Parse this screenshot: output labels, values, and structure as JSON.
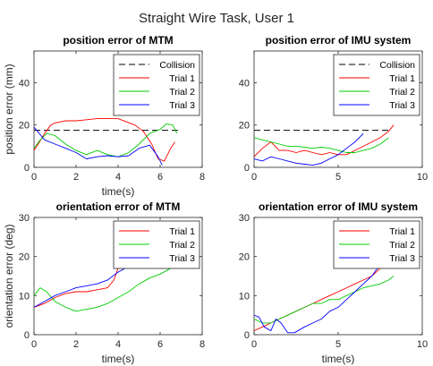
{
  "figure_title": "Straight Wire Task, User 1",
  "colors": {
    "trial1": "#ff0000",
    "trial2": "#00cc00",
    "trial3": "#0000ff",
    "collision": "#000000"
  },
  "chart_data": [
    {
      "type": "line",
      "title": "position error of MTM",
      "xlabel": "time(s)",
      "ylabel": "position error (mm)",
      "xlim": [
        0,
        8
      ],
      "ylim": [
        0,
        55
      ],
      "xticks": [
        0,
        2,
        4,
        6,
        8
      ],
      "yticks": [
        0,
        20,
        40
      ],
      "grid": false,
      "legend_position": "top-right",
      "series": [
        {
          "name": "Collision",
          "style": "dashed",
          "color": "#000000",
          "x": [
            0,
            6.9
          ],
          "y": [
            17.5,
            17.5
          ]
        },
        {
          "name": "Trial 1",
          "color": "#ff0000",
          "x": [
            0,
            0.2,
            0.5,
            0.8,
            1.0,
            1.5,
            2.0,
            2.5,
            3.0,
            3.5,
            4.0,
            4.4,
            4.8,
            5.2,
            5.6,
            5.9,
            6.2,
            6.5,
            6.7
          ],
          "y": [
            8,
            11,
            16,
            20,
            21,
            22,
            22,
            22.5,
            23,
            23,
            23,
            21.5,
            20,
            17,
            11,
            4,
            3,
            9,
            12
          ]
        },
        {
          "name": "Trial 2",
          "color": "#00cc00",
          "x": [
            0,
            0.3,
            0.6,
            1.0,
            1.5,
            2.0,
            2.5,
            3.0,
            3.5,
            4.0,
            4.5,
            5.0,
            5.5,
            6.0,
            6.3,
            6.6,
            6.8
          ],
          "y": [
            9,
            13,
            16,
            15,
            11,
            8,
            6,
            8,
            6,
            5,
            7,
            11,
            16,
            18,
            20.5,
            20,
            16
          ]
        },
        {
          "name": "Trial 3",
          "color": "#0000ff",
          "x": [
            0,
            0.5,
            1.0,
            1.5,
            2.0,
            2.5,
            3.0,
            3.5,
            4.0,
            4.5,
            5.0,
            5.5,
            5.9,
            6.1
          ],
          "y": [
            19,
            13,
            11,
            9,
            7,
            4,
            5,
            5.5,
            5,
            5.5,
            9,
            10.5,
            5,
            1
          ]
        }
      ]
    },
    {
      "type": "line",
      "title": "position error of IMU system",
      "xlabel": "",
      "ylabel": "",
      "xlim": [
        0,
        10
      ],
      "ylim": [
        0,
        55
      ],
      "xticks": [
        0,
        5,
        10
      ],
      "yticks": [
        0,
        20,
        40
      ],
      "grid": false,
      "legend_position": "top-right",
      "series": [
        {
          "name": "Collision",
          "style": "dashed",
          "color": "#000000",
          "x": [
            0,
            8.0
          ],
          "y": [
            17.5,
            17.5
          ]
        },
        {
          "name": "Trial 1",
          "color": "#ff0000",
          "x": [
            0,
            0.5,
            1.0,
            1.5,
            2.0,
            2.5,
            3.0,
            3.5,
            4.0,
            4.5,
            5.0,
            5.5,
            6.0,
            6.5,
            7.0,
            7.5,
            8.0,
            8.3
          ],
          "y": [
            5,
            9,
            12,
            8,
            8,
            7,
            8,
            7,
            6,
            7,
            6,
            6,
            8,
            10,
            12,
            14,
            17,
            20
          ]
        },
        {
          "name": "Trial 2",
          "color": "#00cc00",
          "x": [
            0,
            0.5,
            1.0,
            1.5,
            2.0,
            2.5,
            3.0,
            3.5,
            4.0,
            4.5,
            5.0,
            5.5,
            6.0,
            6.5,
            7.0,
            7.5,
            8.0
          ],
          "y": [
            14,
            13,
            12,
            11,
            10,
            10,
            9.5,
            9,
            9.5,
            9,
            8,
            7,
            7,
            8,
            9,
            11,
            14
          ]
        },
        {
          "name": "Trial 3",
          "color": "#0000ff",
          "x": [
            0,
            0.5,
            1.0,
            1.5,
            2.0,
            2.5,
            3.0,
            3.5,
            4.0,
            4.5,
            5.0,
            5.5,
            6.0,
            6.5
          ],
          "y": [
            4,
            3,
            5,
            4,
            3,
            2,
            1.5,
            1,
            2,
            4,
            6,
            9,
            12,
            16
          ]
        }
      ]
    },
    {
      "type": "line",
      "title": "orientation error of MTM",
      "xlabel": "time(s)",
      "ylabel": "orientation error (deg)",
      "xlim": [
        0,
        8
      ],
      "ylim": [
        0,
        30
      ],
      "xticks": [
        0,
        2,
        4,
        6,
        8
      ],
      "yticks": [
        0,
        10,
        20,
        30
      ],
      "grid": false,
      "legend_position": "top-right",
      "series": [
        {
          "name": "Trial 1",
          "color": "#ff0000",
          "x": [
            0,
            0.5,
            1.0,
            1.5,
            2.0,
            2.5,
            3.0,
            3.5,
            3.8,
            4.0,
            4.2,
            4.5,
            5.0,
            5.5,
            6.0,
            6.3,
            6.6
          ],
          "y": [
            7,
            8,
            9.5,
            10.5,
            11,
            11,
            11.5,
            12,
            14,
            17,
            17,
            18,
            19,
            20,
            18,
            17,
            18.5
          ]
        },
        {
          "name": "Trial 2",
          "color": "#00cc00",
          "x": [
            0,
            0.3,
            0.6,
            1.0,
            1.5,
            2.0,
            2.5,
            3.0,
            3.5,
            4.0,
            4.5,
            5.0,
            5.5,
            6.0,
            6.5,
            6.8
          ],
          "y": [
            10,
            12,
            11,
            8.5,
            7,
            6,
            6.5,
            7,
            8,
            9.5,
            11,
            13,
            14.5,
            15.5,
            17,
            19
          ]
        },
        {
          "name": "Trial 3",
          "color": "#0000ff",
          "x": [
            0,
            0.5,
            1.0,
            1.5,
            2.0,
            2.5,
            3.0,
            3.5,
            4.0,
            4.5,
            5.0,
            5.5
          ],
          "y": [
            7,
            8.5,
            10,
            11,
            12,
            12.5,
            13,
            14,
            16,
            17.5,
            19,
            20
          ]
        }
      ]
    },
    {
      "type": "line",
      "title": "orientation error of IMU system",
      "xlabel": "time(s)",
      "ylabel": "",
      "xlim": [
        0,
        10
      ],
      "ylim": [
        0,
        30
      ],
      "xticks": [
        0,
        5,
        10
      ],
      "yticks": [
        0,
        10,
        20,
        30
      ],
      "grid": false,
      "legend_position": "top-right",
      "series": [
        {
          "name": "Trial 1",
          "color": "#ff0000",
          "x": [
            0,
            0.5,
            1.0,
            1.5,
            2.0,
            2.5,
            3.0,
            3.5,
            4.0,
            4.5,
            5.0,
            5.5,
            6.0,
            6.5,
            7.0,
            7.5,
            8.0
          ],
          "y": [
            1,
            2,
            3,
            4,
            5,
            6,
            7,
            8,
            9,
            10,
            11,
            12,
            13,
            14,
            15,
            17,
            19
          ]
        },
        {
          "name": "Trial 2",
          "color": "#00cc00",
          "x": [
            0,
            0.5,
            1.0,
            1.5,
            2.0,
            2.5,
            3.0,
            3.5,
            4.0,
            4.5,
            5.0,
            5.5,
            6.0,
            6.5,
            7.0,
            7.5,
            8.0,
            8.3
          ],
          "y": [
            4,
            3,
            3,
            4,
            5,
            6,
            7,
            8,
            8,
            9,
            9,
            10,
            11,
            12,
            12.5,
            13,
            14,
            15
          ]
        },
        {
          "name": "Trial 3",
          "color": "#0000ff",
          "x": [
            0,
            0.3,
            0.6,
            1.0,
            1.3,
            1.6,
            2.0,
            2.4,
            3.0,
            3.5,
            4.0,
            4.5,
            5.0,
            5.5,
            6.0,
            6.5,
            7.0,
            7.5
          ],
          "y": [
            5,
            4.5,
            2,
            1,
            4,
            3,
            0.5,
            0.5,
            2,
            3,
            4,
            6,
            7,
            9,
            11,
            13,
            15,
            18
          ]
        }
      ]
    }
  ]
}
